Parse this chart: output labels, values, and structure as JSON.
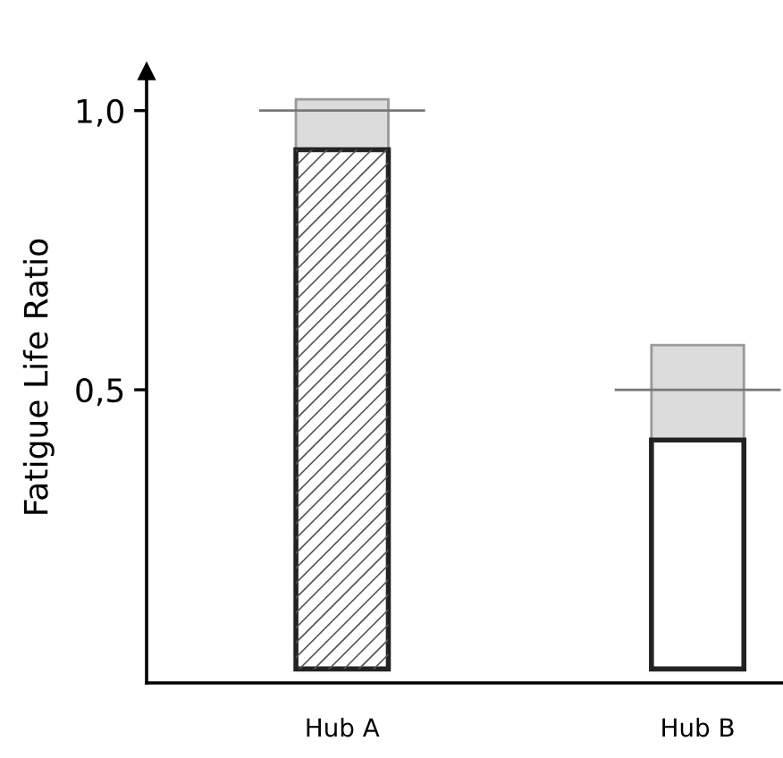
{
  "chart_data": {
    "type": "bar",
    "stacked": true,
    "ylabel": "Fatigue Life Ratio",
    "categories": [
      "Hub A",
      "Hub B"
    ],
    "series": [
      {
        "colors": [
          "#ffffff",
          "#ffffff"
        ],
        "values": [
          0.93,
          0.41
        ]
      },
      {
        "color": "#dcdcdc",
        "values": [
          0.09,
          0.17
        ]
      }
    ],
    "ref_lines": [
      {
        "axis": "y",
        "value": 1.0,
        "color": "#777777"
      },
      {
        "axis": "y",
        "value": 0.5,
        "color": "#777777"
      }
    ],
    "ylim": [
      -0.025,
      1.07
    ],
    "yticks": [
      {
        "value": 0.5,
        "label": "0,5"
      },
      {
        "value": 1.0,
        "label": "1,0"
      }
    ],
    "grid": false,
    "legend": false
  }
}
